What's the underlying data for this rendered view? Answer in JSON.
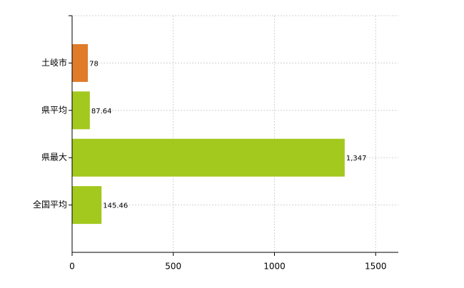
{
  "chart_data": {
    "type": "hbar",
    "categories": [
      "土岐市",
      "県平均",
      "県最大",
      "全国平均"
    ],
    "values": [
      78,
      87.64,
      1347,
      145.46
    ],
    "value_labels": [
      "78",
      "87.64",
      "1,347",
      "145.46"
    ],
    "colors": [
      "#e07b28",
      "#a3c81e",
      "#a3c81e",
      "#a3c81e"
    ],
    "xlim": [
      0,
      1612
    ],
    "xticks": [
      0,
      500,
      1000,
      1500
    ],
    "grid": true
  }
}
